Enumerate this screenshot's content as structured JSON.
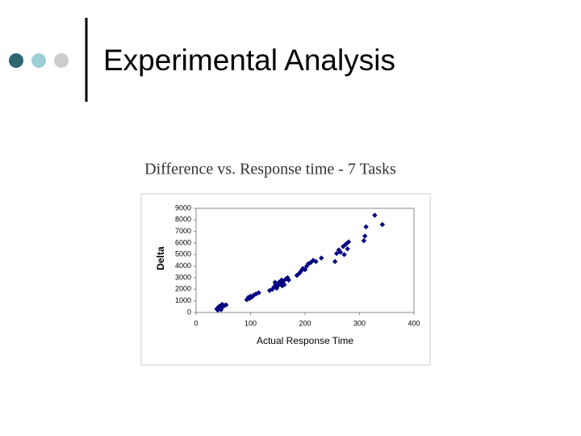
{
  "header": {
    "title": "Experimental Analysis"
  },
  "chart_data": {
    "type": "scatter",
    "title": "Difference vs. Response time  - 7 Tasks",
    "x_label": "Actual Response Time",
    "y_label": "Delta",
    "color": "#000080",
    "xlim": [
      0,
      400
    ],
    "xticks": [
      0,
      100,
      200,
      300,
      400
    ],
    "ylim": [
      0,
      9000
    ],
    "yticks": [
      0,
      1000,
      2000,
      3000,
      4000,
      5000,
      6000,
      7000,
      8000,
      9000
    ],
    "grid": false,
    "x": [
      38,
      40,
      42,
      44,
      45,
      47,
      48,
      50,
      52,
      55,
      40,
      46,
      93,
      96,
      100,
      103,
      106,
      110,
      115,
      98,
      135,
      140,
      143,
      146,
      148,
      150,
      152,
      155,
      157,
      160,
      162,
      165,
      168,
      170,
      145,
      158,
      185,
      190,
      193,
      196,
      200,
      203,
      206,
      210,
      215,
      220,
      230,
      255,
      258,
      262,
      265,
      270,
      272,
      275,
      278,
      280,
      308,
      310,
      312,
      328,
      342
    ],
    "values": [
      300,
      400,
      500,
      350,
      600,
      450,
      700,
      550,
      600,
      650,
      200,
      250,
      1100,
      1300,
      1400,
      1350,
      1500,
      1600,
      1700,
      1200,
      1900,
      2000,
      2200,
      2400,
      2100,
      2300,
      2600,
      2500,
      2800,
      2700,
      2400,
      2900,
      3000,
      2800,
      2600,
      2300,
      3200,
      3400,
      3600,
      3800,
      3700,
      4000,
      4200,
      4300,
      4500,
      4400,
      4700,
      4400,
      5100,
      5400,
      5200,
      5700,
      5000,
      5900,
      5500,
      6100,
      6200,
      6600,
      7400,
      8400,
      7600
    ]
  }
}
